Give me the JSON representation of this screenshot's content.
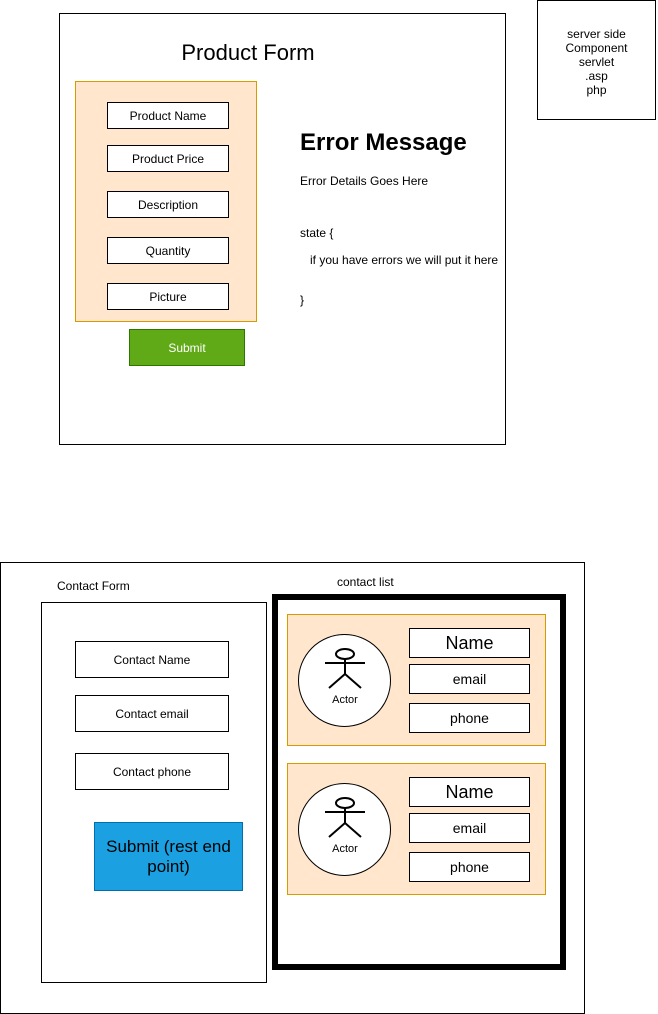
{
  "product_form": {
    "title": "Product Form",
    "fields": [
      "Product Name",
      "Product Price",
      "Description",
      "Quantity",
      "Picture"
    ],
    "submit_label": "Submit",
    "colors": {
      "fields_group_fill": "#ffe6cc",
      "fields_group_stroke": "#d79b00",
      "submit_fill": "#60a917"
    }
  },
  "error_panel": {
    "heading": "Error Message",
    "details": "Error Details Goes Here",
    "state_open": "state {",
    "state_body": "if you have errors we will put it here",
    "state_close": "}"
  },
  "server_note": {
    "lines": [
      "server side",
      "Component",
      "servlet",
      ".asp",
      "php"
    ]
  },
  "contact_form": {
    "label": "Contact Form",
    "fields": [
      "Contact Name",
      "Contact email",
      "Contact phone"
    ],
    "submit_label": "Submit (rest end point)",
    "colors": {
      "submit_fill": "#1ba1e2"
    }
  },
  "contact_list": {
    "label": "contact list",
    "cards": [
      {
        "actor_label": "Actor",
        "name": "Name",
        "email": "email",
        "phone": "phone"
      },
      {
        "actor_label": "Actor",
        "name": "Name",
        "email": "email",
        "phone": "phone"
      }
    ]
  }
}
